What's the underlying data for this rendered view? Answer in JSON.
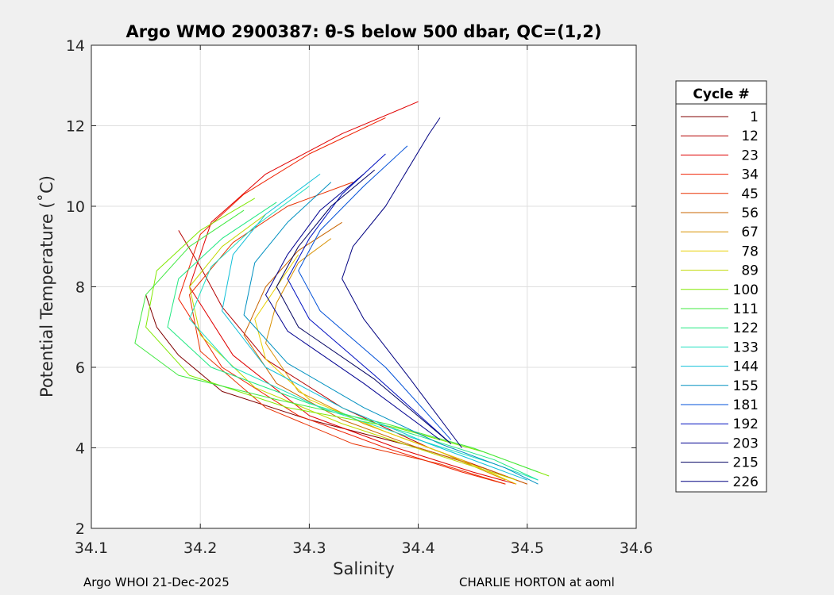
{
  "chart_data": {
    "type": "line",
    "title": "Argo WMO 2900387: θ-S below 500 dbar,  QC=(1,2)",
    "xlabel": "Salinity",
    "ylabel": "Potential Temperature (˚C)",
    "xlim": [
      34.1,
      34.6
    ],
    "ylim": [
      2,
      14
    ],
    "xticks": [
      34.1,
      34.2,
      34.3,
      34.4,
      34.5,
      34.6
    ],
    "xtick_labels": [
      "34.1",
      "34.2",
      "34.3",
      "34.4",
      "34.5",
      "34.6"
    ],
    "yticks": [
      2,
      4,
      6,
      8,
      10,
      12,
      14
    ],
    "ytick_labels": [
      "2",
      "4",
      "6",
      "8",
      "10",
      "12",
      "14"
    ],
    "grid": true,
    "legend": {
      "title": "Cycle #",
      "placement": "outside-right",
      "entries": [
        "1",
        "12",
        "23",
        "34",
        "45",
        "56",
        "67",
        "78",
        "89",
        "100",
        "111",
        "122",
        "133",
        "144",
        "155",
        "181",
        "192",
        "203",
        "215",
        "226"
      ],
      "colors": [
        "#800000",
        "#b40000",
        "#e00000",
        "#f02000",
        "#e83000",
        "#c86400",
        "#d89000",
        "#e8d000",
        "#c0d800",
        "#80e800",
        "#40e840",
        "#20e880",
        "#20e0c0",
        "#10c0d8",
        "#0090c0",
        "#0050d8",
        "#0010c0",
        "#000090",
        "#000060",
        "#000080"
      ]
    },
    "series": [
      {
        "name": "1",
        "x": [
          34.15,
          34.16,
          34.18,
          34.22,
          34.3,
          34.4,
          34.46,
          34.49
        ],
        "y": [
          7.8,
          7.0,
          6.3,
          5.4,
          4.7,
          4.0,
          3.5,
          3.2
        ]
      },
      {
        "name": "12",
        "x": [
          34.18,
          34.2,
          34.22,
          34.26,
          34.33,
          34.41,
          34.47,
          34.5
        ],
        "y": [
          9.4,
          8.5,
          7.5,
          6.2,
          5.0,
          4.0,
          3.4,
          3.1
        ]
      },
      {
        "name": "23",
        "x": [
          34.4,
          34.33,
          34.26,
          34.21,
          34.19,
          34.23,
          34.3,
          34.38,
          34.45,
          34.49
        ],
        "y": [
          12.6,
          11.8,
          10.8,
          9.6,
          8.0,
          6.3,
          4.8,
          4.0,
          3.4,
          3.1
        ]
      },
      {
        "name": "34",
        "x": [
          34.37,
          34.3,
          34.24,
          34.2,
          34.18,
          34.22,
          34.29,
          34.37,
          34.44,
          34.48
        ],
        "y": [
          12.2,
          11.3,
          10.3,
          9.3,
          7.7,
          6.0,
          4.8,
          4.0,
          3.4,
          3.1
        ]
      },
      {
        "name": "45",
        "x": [
          34.34,
          34.28,
          34.23,
          34.19,
          34.2,
          34.26,
          34.34,
          34.42,
          34.48
        ],
        "y": [
          10.6,
          10.0,
          9.1,
          7.8,
          6.4,
          5.0,
          4.1,
          3.6,
          3.1
        ]
      },
      {
        "name": "56",
        "x": [
          34.33,
          34.29,
          34.26,
          34.24,
          34.27,
          34.33,
          34.4,
          34.46,
          34.5
        ],
        "y": [
          9.6,
          8.9,
          8.0,
          6.8,
          5.6,
          4.7,
          4.0,
          3.5,
          3.1
        ]
      },
      {
        "name": "67",
        "x": [
          34.32,
          34.29,
          34.27,
          34.26,
          34.29,
          34.35,
          34.42,
          34.48
        ],
        "y": [
          9.2,
          8.6,
          7.6,
          6.6,
          5.4,
          4.6,
          3.9,
          3.2
        ]
      },
      {
        "name": "78",
        "x": [
          34.29,
          34.27,
          34.25,
          34.26,
          34.3,
          34.37,
          34.44,
          34.49
        ],
        "y": [
          8.8,
          8.0,
          7.2,
          6.2,
          5.2,
          4.4,
          3.7,
          3.1
        ]
      },
      {
        "name": "89",
        "x": [
          34.26,
          34.22,
          34.19,
          34.2,
          34.25,
          34.33,
          34.42,
          34.49
        ],
        "y": [
          9.8,
          9.0,
          8.0,
          6.8,
          5.5,
          4.6,
          3.8,
          3.2
        ]
      },
      {
        "name": "100",
        "x": [
          34.25,
          34.2,
          34.16,
          34.15,
          34.19,
          34.28,
          34.38,
          34.46,
          34.52
        ],
        "y": [
          10.2,
          9.4,
          8.4,
          7.0,
          5.8,
          5.0,
          4.5,
          3.9,
          3.3
        ]
      },
      {
        "name": "111",
        "x": [
          34.24,
          34.19,
          34.15,
          34.14,
          34.18,
          34.27,
          34.37,
          34.45,
          34.51
        ],
        "y": [
          9.9,
          9.0,
          7.8,
          6.6,
          5.8,
          5.2,
          4.6,
          4.0,
          3.4
        ]
      },
      {
        "name": "122",
        "x": [
          34.27,
          34.22,
          34.18,
          34.17,
          34.21,
          34.3,
          34.4,
          34.47,
          34.51
        ],
        "y": [
          10.1,
          9.2,
          8.2,
          7.0,
          6.0,
          5.1,
          4.3,
          3.7,
          3.2
        ]
      },
      {
        "name": "133",
        "x": [
          34.3,
          34.25,
          34.21,
          34.19,
          34.23,
          34.31,
          34.4,
          34.47,
          34.51
        ],
        "y": [
          10.5,
          9.5,
          8.5,
          7.2,
          6.0,
          5.0,
          4.2,
          3.6,
          3.2
        ]
      },
      {
        "name": "144",
        "x": [
          34.31,
          34.26,
          34.23,
          34.22,
          34.26,
          34.33,
          34.41,
          34.47,
          34.5
        ],
        "y": [
          10.8,
          9.8,
          8.8,
          7.4,
          6.0,
          5.0,
          4.1,
          3.5,
          3.2
        ]
      },
      {
        "name": "155",
        "x": [
          34.32,
          34.28,
          34.25,
          34.24,
          34.28,
          34.35,
          34.42,
          34.48,
          34.51
        ],
        "y": [
          10.6,
          9.6,
          8.6,
          7.3,
          6.1,
          5.0,
          4.1,
          3.5,
          3.1
        ]
      },
      {
        "name": "181",
        "x": [
          34.39,
          34.35,
          34.31,
          34.29,
          34.31,
          34.37,
          34.43
        ],
        "y": [
          11.5,
          10.5,
          9.4,
          8.4,
          7.4,
          6.0,
          4.2
        ]
      },
      {
        "name": "192",
        "x": [
          34.37,
          34.33,
          34.3,
          34.28,
          34.3,
          34.36,
          34.43
        ],
        "y": [
          11.3,
          10.3,
          9.2,
          8.2,
          7.2,
          5.8,
          4.1
        ]
      },
      {
        "name": "203",
        "x": [
          34.35,
          34.31,
          34.28,
          34.26,
          34.28,
          34.35,
          34.42
        ],
        "y": [
          10.8,
          9.9,
          8.8,
          7.8,
          6.9,
          5.6,
          4.2
        ]
      },
      {
        "name": "215",
        "x": [
          34.36,
          34.32,
          34.29,
          34.27,
          34.29,
          34.36,
          34.43
        ],
        "y": [
          10.9,
          10.0,
          9.0,
          8.0,
          7.0,
          5.7,
          4.1
        ]
      },
      {
        "name": "226",
        "x": [
          34.42,
          34.41,
          34.37,
          34.34,
          34.33,
          34.35,
          34.39,
          34.44
        ],
        "y": [
          12.2,
          11.8,
          10.0,
          9.0,
          8.2,
          7.2,
          5.8,
          4.0
        ]
      }
    ]
  },
  "footer": {
    "left": "Argo WHOI 21-Dec-2025",
    "right": "CHARLIE HORTON at aoml"
  }
}
